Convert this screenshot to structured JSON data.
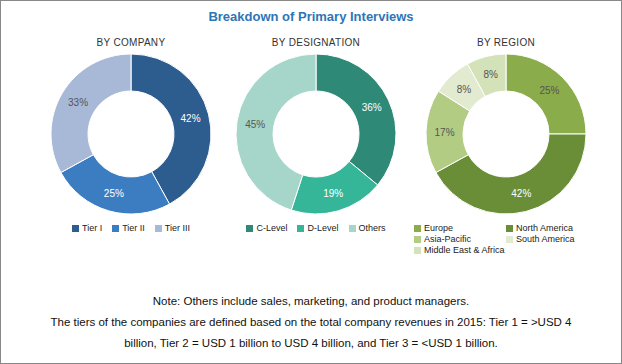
{
  "title": "Breakdown of Primary Interviews",
  "chart_data": [
    {
      "type": "pie",
      "title": "BY COMPANY",
      "categories": [
        "Tier I",
        "Tier II",
        "Tier III"
      ],
      "values": [
        42,
        25,
        33
      ],
      "value_labels": [
        "42%",
        "25%",
        "33%"
      ],
      "colors": [
        "#2d5c8f",
        "#3c7dc2",
        "#a8b9d7"
      ],
      "data_labels": true,
      "legend": "bottom"
    },
    {
      "type": "pie",
      "title": "BY DESIGNATION",
      "categories": [
        "C-Level",
        "D-Level",
        "Others"
      ],
      "values": [
        36,
        19,
        45
      ],
      "value_labels": [
        "36%",
        "19%",
        "45%"
      ],
      "colors": [
        "#2e8a76",
        "#36b698",
        "#a6d5ca"
      ],
      "data_labels": true,
      "legend": "bottom"
    },
    {
      "type": "pie",
      "title": "BY REGION",
      "categories": [
        "Europe",
        "North America",
        "Asia-Pacific",
        "South America",
        "Middle East & Africa"
      ],
      "values": [
        25,
        42,
        17,
        8,
        8
      ],
      "value_labels": [
        "25%",
        "42%",
        "17%",
        "8%",
        "8%"
      ],
      "colors": [
        "#8bac4b",
        "#6a8d38",
        "#b3cc84",
        "#e2eacf",
        "#d4e2b9"
      ],
      "data_labels": true,
      "legend": "bottom"
    }
  ],
  "notes": [
    "Note: Others include sales, marketing, and product managers.",
    "The tiers of the companies are defined based on the total company revenues in 2015: Tier 1 = >USD 4",
    "billion, Tier 2 = USD 1 billion to USD 4 billion, and Tier 3 = <USD 1 billion."
  ]
}
